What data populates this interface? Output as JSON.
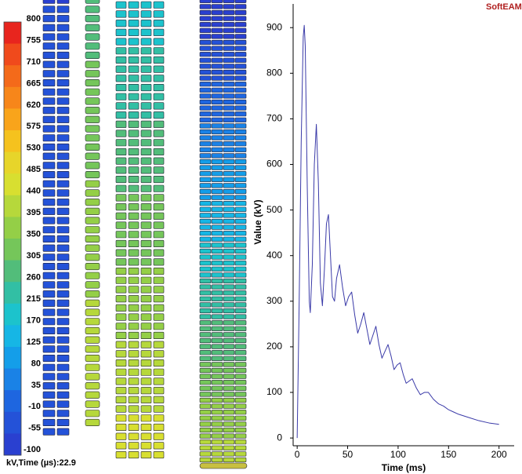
{
  "logo": "SoftEAM",
  "colorbar": {
    "labels": [
      "800",
      "755",
      "710",
      "665",
      "620",
      "575",
      "530",
      "485",
      "440",
      "395",
      "350",
      "305",
      "260",
      "215",
      "170",
      "125",
      "80",
      "35",
      "-10",
      "-55",
      "-100"
    ],
    "colors": [
      "#e8251e",
      "#f04a1c",
      "#f46a1a",
      "#f7861a",
      "#f9a41b",
      "#f5c21e",
      "#e7d52a",
      "#d8df30",
      "#b6d83b",
      "#94cf47",
      "#75c65a",
      "#52bd7a",
      "#32bfa4",
      "#1cc3cc",
      "#16b6e5",
      "#149ee9",
      "#1a82e6",
      "#1e66e0",
      "#2452d8",
      "#2a40d0"
    ]
  },
  "caption": "kV,Time (µs):22.9",
  "chart_data": {
    "type": "line",
    "xlabel": "Time (ms)",
    "ylabel": "Value (kV)",
    "xlim": [
      -4,
      215
    ],
    "ylim": [
      -17,
      952
    ],
    "xticks": [
      0,
      50,
      100,
      150,
      200
    ],
    "yticks": [
      0,
      100,
      200,
      300,
      400,
      500,
      600,
      700,
      800,
      900
    ],
    "series": [
      {
        "color": "#3a3aa8",
        "x": [
          0,
          2,
          4,
          6,
          7,
          8,
          10,
          12,
          13,
          15,
          17,
          19,
          21,
          23,
          25,
          27,
          29,
          31,
          33,
          35,
          37,
          39,
          42,
          45,
          48,
          51,
          54,
          57,
          60,
          63,
          66,
          69,
          72,
          75,
          78,
          81,
          84,
          87,
          90,
          93,
          96,
          99,
          102,
          105,
          108,
          111,
          114,
          118,
          122,
          126,
          130,
          135,
          140,
          145,
          150,
          155,
          160,
          170,
          180,
          190,
          200
        ],
        "values": [
          0,
          300,
          650,
          880,
          905,
          860,
          550,
          300,
          275,
          380,
          600,
          688,
          560,
          340,
          290,
          370,
          470,
          490,
          400,
          310,
          300,
          350,
          380,
          330,
          290,
          310,
          320,
          270,
          230,
          250,
          275,
          240,
          205,
          225,
          245,
          205,
          175,
          190,
          205,
          180,
          150,
          160,
          165,
          140,
          120,
          125,
          130,
          110,
          95,
          100,
          100,
          85,
          75,
          70,
          62,
          57,
          52,
          45,
          38,
          33,
          30
        ]
      }
    ]
  }
}
